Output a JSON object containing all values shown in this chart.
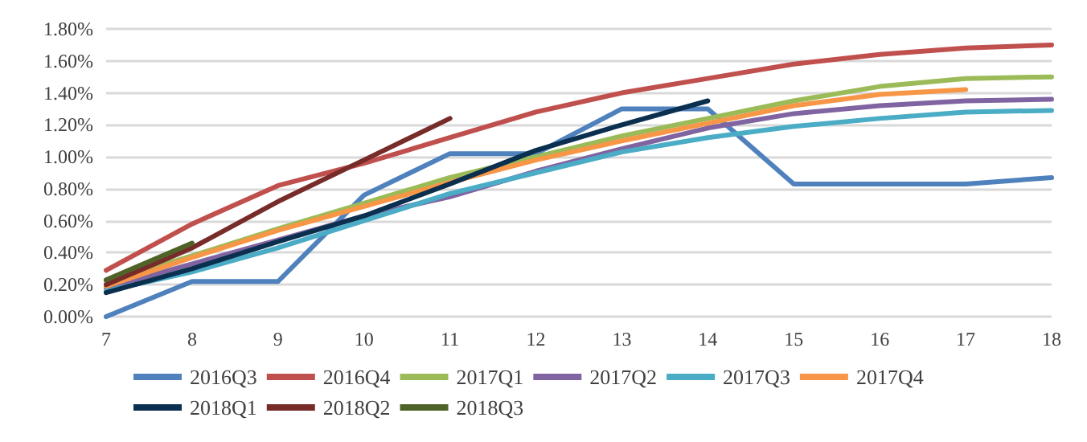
{
  "chart_data": {
    "type": "line",
    "categories": [
      "7",
      "8",
      "9",
      "10",
      "11",
      "12",
      "13",
      "14",
      "15",
      "16",
      "17",
      "18"
    ],
    "series": [
      {
        "name": "2016Q3",
        "color": "#4f81bd",
        "values": [
          0,
          0.22,
          0.22,
          0.76,
          1.02,
          1.02,
          1.3,
          1.3,
          0.83,
          0.83,
          0.83,
          0.87
        ]
      },
      {
        "name": "2016Q4",
        "color": "#c0504d",
        "values": [
          0.29,
          0.58,
          0.82,
          0.96,
          1.12,
          1.28,
          1.4,
          1.49,
          1.58,
          1.64,
          1.68,
          1.7
        ]
      },
      {
        "name": "2017Q1",
        "color": "#9bbb59",
        "values": [
          0.22,
          0.38,
          0.55,
          0.71,
          0.87,
          1.0,
          1.13,
          1.24,
          1.35,
          1.44,
          1.49,
          1.5
        ]
      },
      {
        "name": "2017Q2",
        "color": "#8064a2",
        "values": [
          0.18,
          0.33,
          0.48,
          0.63,
          0.75,
          0.91,
          1.05,
          1.18,
          1.27,
          1.32,
          1.35,
          1.36
        ]
      },
      {
        "name": "2017Q3",
        "color": "#4bacc6",
        "values": [
          0.16,
          0.28,
          0.43,
          0.6,
          0.77,
          0.9,
          1.03,
          1.12,
          1.19,
          1.24,
          1.28,
          1.29
        ]
      },
      {
        "name": "2017Q4",
        "color": "#f79646",
        "values": [
          0.19,
          0.37,
          0.54,
          0.69,
          0.84,
          0.98,
          1.1,
          1.21,
          1.32,
          1.39,
          1.42,
          null
        ]
      },
      {
        "name": "2018Q1",
        "color": "#0b2f4e",
        "values": [
          0.15,
          0.3,
          0.47,
          0.63,
          0.83,
          1.04,
          1.2,
          1.35,
          null,
          null,
          null,
          null
        ]
      },
      {
        "name": "2018Q2",
        "color": "#772c2a",
        "values": [
          0.2,
          0.43,
          0.72,
          0.98,
          1.24,
          null,
          null,
          null,
          null,
          null,
          null,
          null
        ]
      },
      {
        "name": "2018Q3",
        "color": "#4f6228",
        "values": [
          0.23,
          0.46,
          null,
          null,
          null,
          null,
          null,
          null,
          null,
          null,
          null,
          null
        ]
      }
    ],
    "ylim": [
      0,
      1.8
    ],
    "yticks": [
      {
        "value": 0,
        "label": "0.00%"
      },
      {
        "value": 0.2,
        "label": "0.20%"
      },
      {
        "value": 0.4,
        "label": "0.40%"
      },
      {
        "value": 0.6,
        "label": "0.60%"
      },
      {
        "value": 0.8,
        "label": "0.80%"
      },
      {
        "value": 1.0,
        "label": "1.00%"
      },
      {
        "value": 1.2,
        "label": "1.20%"
      },
      {
        "value": 1.4,
        "label": "1.40%"
      },
      {
        "value": 1.6,
        "label": "1.60%"
      },
      {
        "value": 1.8,
        "label": "1.80%"
      }
    ],
    "grid": "y",
    "legend": "bottom",
    "marker": "none",
    "line_style": "solid"
  }
}
